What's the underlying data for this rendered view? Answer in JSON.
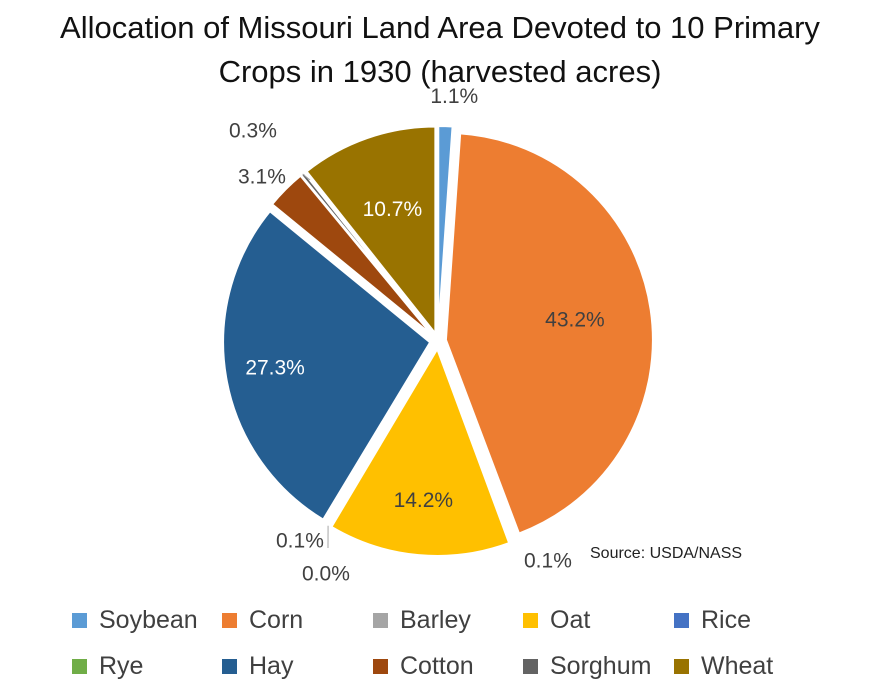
{
  "title_line1": "Allocation of Missouri Land Area Devoted to 10 Primary",
  "title_line2": "Crops in 1930 (harvested acres)",
  "source": "Source: USDA/NASS",
  "chart_data": {
    "type": "pie",
    "title": "Allocation of Missouri Land Area Devoted to 10 Primary Crops in 1930 (harvested acres)",
    "legend_position": "bottom",
    "slices": [
      {
        "name": "Soybean",
        "value": 1.1,
        "label": "1.1%",
        "color": "#5B9BD5"
      },
      {
        "name": "Corn",
        "value": 43.2,
        "label": "43.2%",
        "color": "#ED7D31"
      },
      {
        "name": "Barley",
        "value": 0.1,
        "label": "0.1%",
        "color": "#A5A5A5"
      },
      {
        "name": "Oat",
        "value": 14.2,
        "label": "14.2%",
        "color": "#FFC000"
      },
      {
        "name": "Rice",
        "value": 0.0,
        "label": "0.0%",
        "color": "#4472C4"
      },
      {
        "name": "Rye",
        "value": 0.1,
        "label": "0.1%",
        "color": "#70AD47"
      },
      {
        "name": "Hay",
        "value": 27.3,
        "label": "27.3%",
        "color": "#255E91"
      },
      {
        "name": "Cotton",
        "value": 3.1,
        "label": "3.1%",
        "color": "#9E480E"
      },
      {
        "name": "Sorghum",
        "value": 0.3,
        "label": "0.3%",
        "color": "#636363"
      },
      {
        "name": "Wheat",
        "value": 10.7,
        "label": "10.7%",
        "color": "#997300"
      }
    ]
  }
}
